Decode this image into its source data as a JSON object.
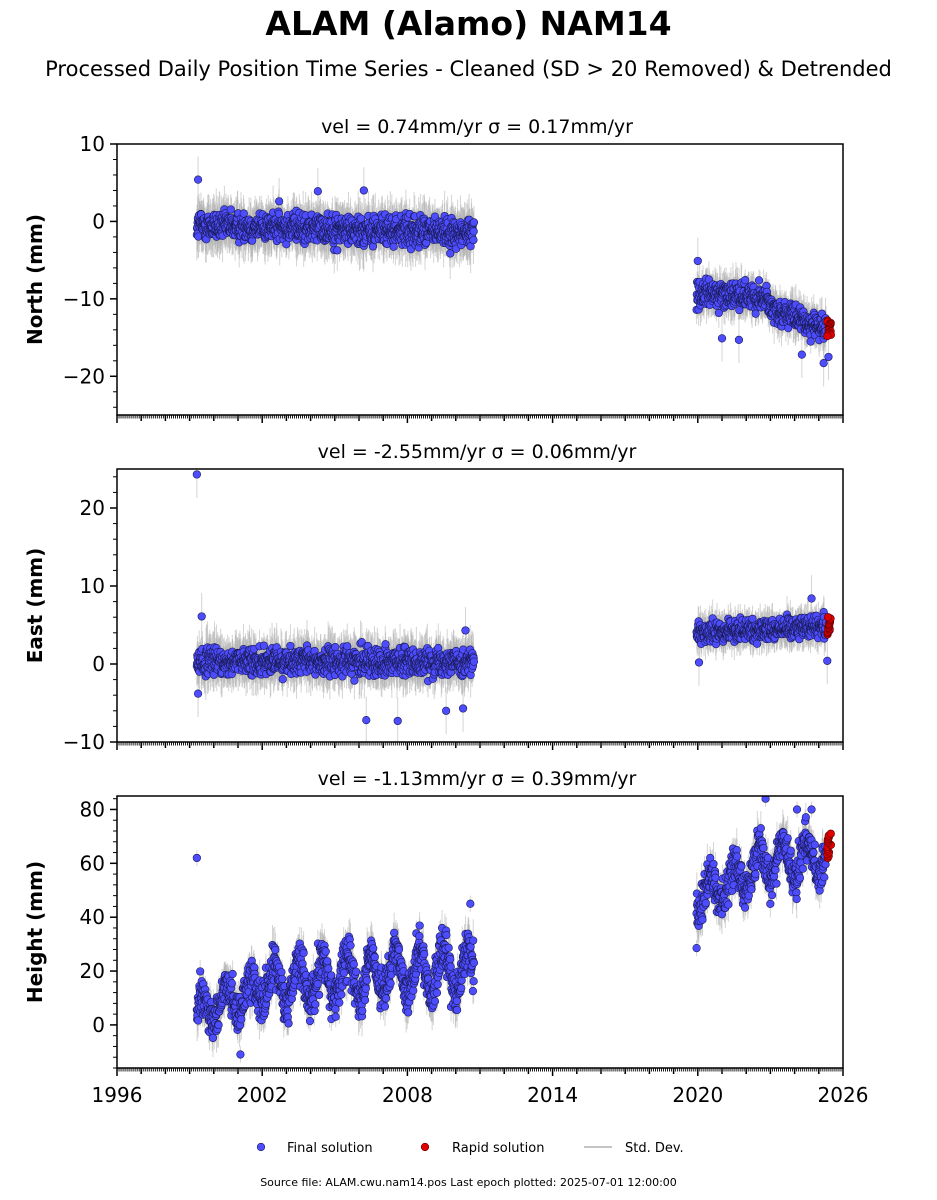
{
  "title": "ALAM (Alamo) NAM14",
  "subtitle": "Processed Daily Position Time Series - Cleaned (SD > 20 Removed) & Detrended",
  "footer": "Source file: ALAM.cwu.nam14.pos  Last epoch plotted: 2025-07-01 12:00:00",
  "colors": {
    "final": "#4d4dff",
    "rapid": "#e00000",
    "stddev": "#b0b0b0",
    "edge": "#1a1a55"
  },
  "legend": {
    "final": "Final solution",
    "rapid": "Rapid solution",
    "stddev": "Std. Dev."
  },
  "chart_data": [
    {
      "type": "scatter",
      "title": "vel = 0.74mm/yr   σ = 0.17mm/yr",
      "ylabel": "North (mm)",
      "xlim": [
        1996,
        2026
      ],
      "ylim": [
        -25,
        10
      ],
      "yticks": [
        -20,
        -10,
        0,
        10
      ],
      "xticks": [
        1996,
        2002,
        2008,
        2014,
        2020,
        2026
      ],
      "segments": [
        {
          "x0": 1999.3,
          "x1": 2010.75,
          "y0": -0.5,
          "y1": -1.5,
          "noise": 1.3,
          "err": 2.5
        },
        {
          "x0": 2019.95,
          "x1": 2022.9,
          "y0": -9.2,
          "y1": -9.8,
          "noise": 1.2,
          "err": 2.0
        },
        {
          "x0": 2022.9,
          "x1": 2025.3,
          "y0": -11.0,
          "y1": -14.0,
          "noise": 1.1,
          "err": 2.0
        }
      ],
      "outliers": [
        [
          1999.35,
          5.4
        ],
        [
          2002.7,
          2.6
        ],
        [
          2004.3,
          3.9
        ],
        [
          2006.2,
          4.0
        ],
        [
          2020.0,
          -5.1
        ],
        [
          2021.0,
          -15.1
        ],
        [
          2021.7,
          -15.3
        ],
        [
          2024.3,
          -17.2
        ],
        [
          2025.2,
          -18.3
        ],
        [
          2025.4,
          -17.5
        ]
      ],
      "rapid": {
        "x0": 2025.35,
        "x1": 2025.5,
        "y0": -12.8,
        "y1": -14.8
      }
    },
    {
      "type": "scatter",
      "title": "vel = -2.55mm/yr   σ = 0.06mm/yr",
      "ylabel": "East (mm)",
      "xlim": [
        1996,
        2026
      ],
      "ylim": [
        -10,
        25
      ],
      "yticks": [
        -10,
        0,
        10,
        20
      ],
      "xticks": [
        1996,
        2002,
        2008,
        2014,
        2020,
        2026
      ],
      "segments": [
        {
          "x0": 1999.3,
          "x1": 2010.75,
          "y0": 0.3,
          "y1": 0.3,
          "noise": 1.2,
          "err": 2.4
        },
        {
          "x0": 2019.95,
          "x1": 2025.3,
          "y0": 3.8,
          "y1": 5.0,
          "noise": 1.0,
          "err": 1.8
        }
      ],
      "outliers": [
        [
          1999.3,
          24.3
        ],
        [
          1999.5,
          6.1
        ],
        [
          1999.35,
          -3.8
        ],
        [
          2006.3,
          -7.2
        ],
        [
          2007.6,
          -7.3
        ],
        [
          2009.6,
          -6.0
        ],
        [
          2010.3,
          -5.7
        ],
        [
          2010.4,
          4.3
        ],
        [
          2020.05,
          0.2
        ],
        [
          2025.35,
          0.4
        ],
        [
          2024.7,
          8.4
        ]
      ],
      "rapid": {
        "x0": 2025.35,
        "x1": 2025.5,
        "y0": 3.8,
        "y1": 6.0
      }
    },
    {
      "type": "scatter",
      "title": "vel = -1.13mm/yr   σ = 0.39mm/yr",
      "ylabel": "Height (mm)",
      "xlim": [
        1996,
        2026
      ],
      "ylim": [
        -16,
        85
      ],
      "yticks": [
        0,
        20,
        40,
        60,
        80
      ],
      "xticks": [
        1996,
        2002,
        2008,
        2014,
        2020,
        2026
      ],
      "segments": [
        {
          "x0": 1999.3,
          "x1": 2002.9,
          "y0": 4,
          "y1": 17,
          "noise": 5.5,
          "err": 6,
          "season": 6
        },
        {
          "x0": 2002.9,
          "x1": 2010.75,
          "y0": 16,
          "y1": 21,
          "noise": 5.5,
          "err": 6,
          "season": 8
        },
        {
          "x0": 2019.95,
          "x1": 2022.5,
          "y0": 47,
          "y1": 58,
          "noise": 5,
          "err": 6,
          "season": 6
        },
        {
          "x0": 2022.5,
          "x1": 2025.3,
          "y0": 60,
          "y1": 63,
          "noise": 5,
          "err": 6,
          "season": 7
        }
      ],
      "outliers": [
        [
          1999.3,
          62
        ],
        [
          2001.1,
          -11
        ],
        [
          2010.6,
          45
        ],
        [
          2019.95,
          28.5
        ],
        [
          2022.8,
          84
        ],
        [
          2024.1,
          80
        ],
        [
          2024.7,
          80
        ]
      ],
      "rapid": {
        "x0": 2025.35,
        "x1": 2025.5,
        "y0": 62,
        "y1": 71
      }
    }
  ]
}
